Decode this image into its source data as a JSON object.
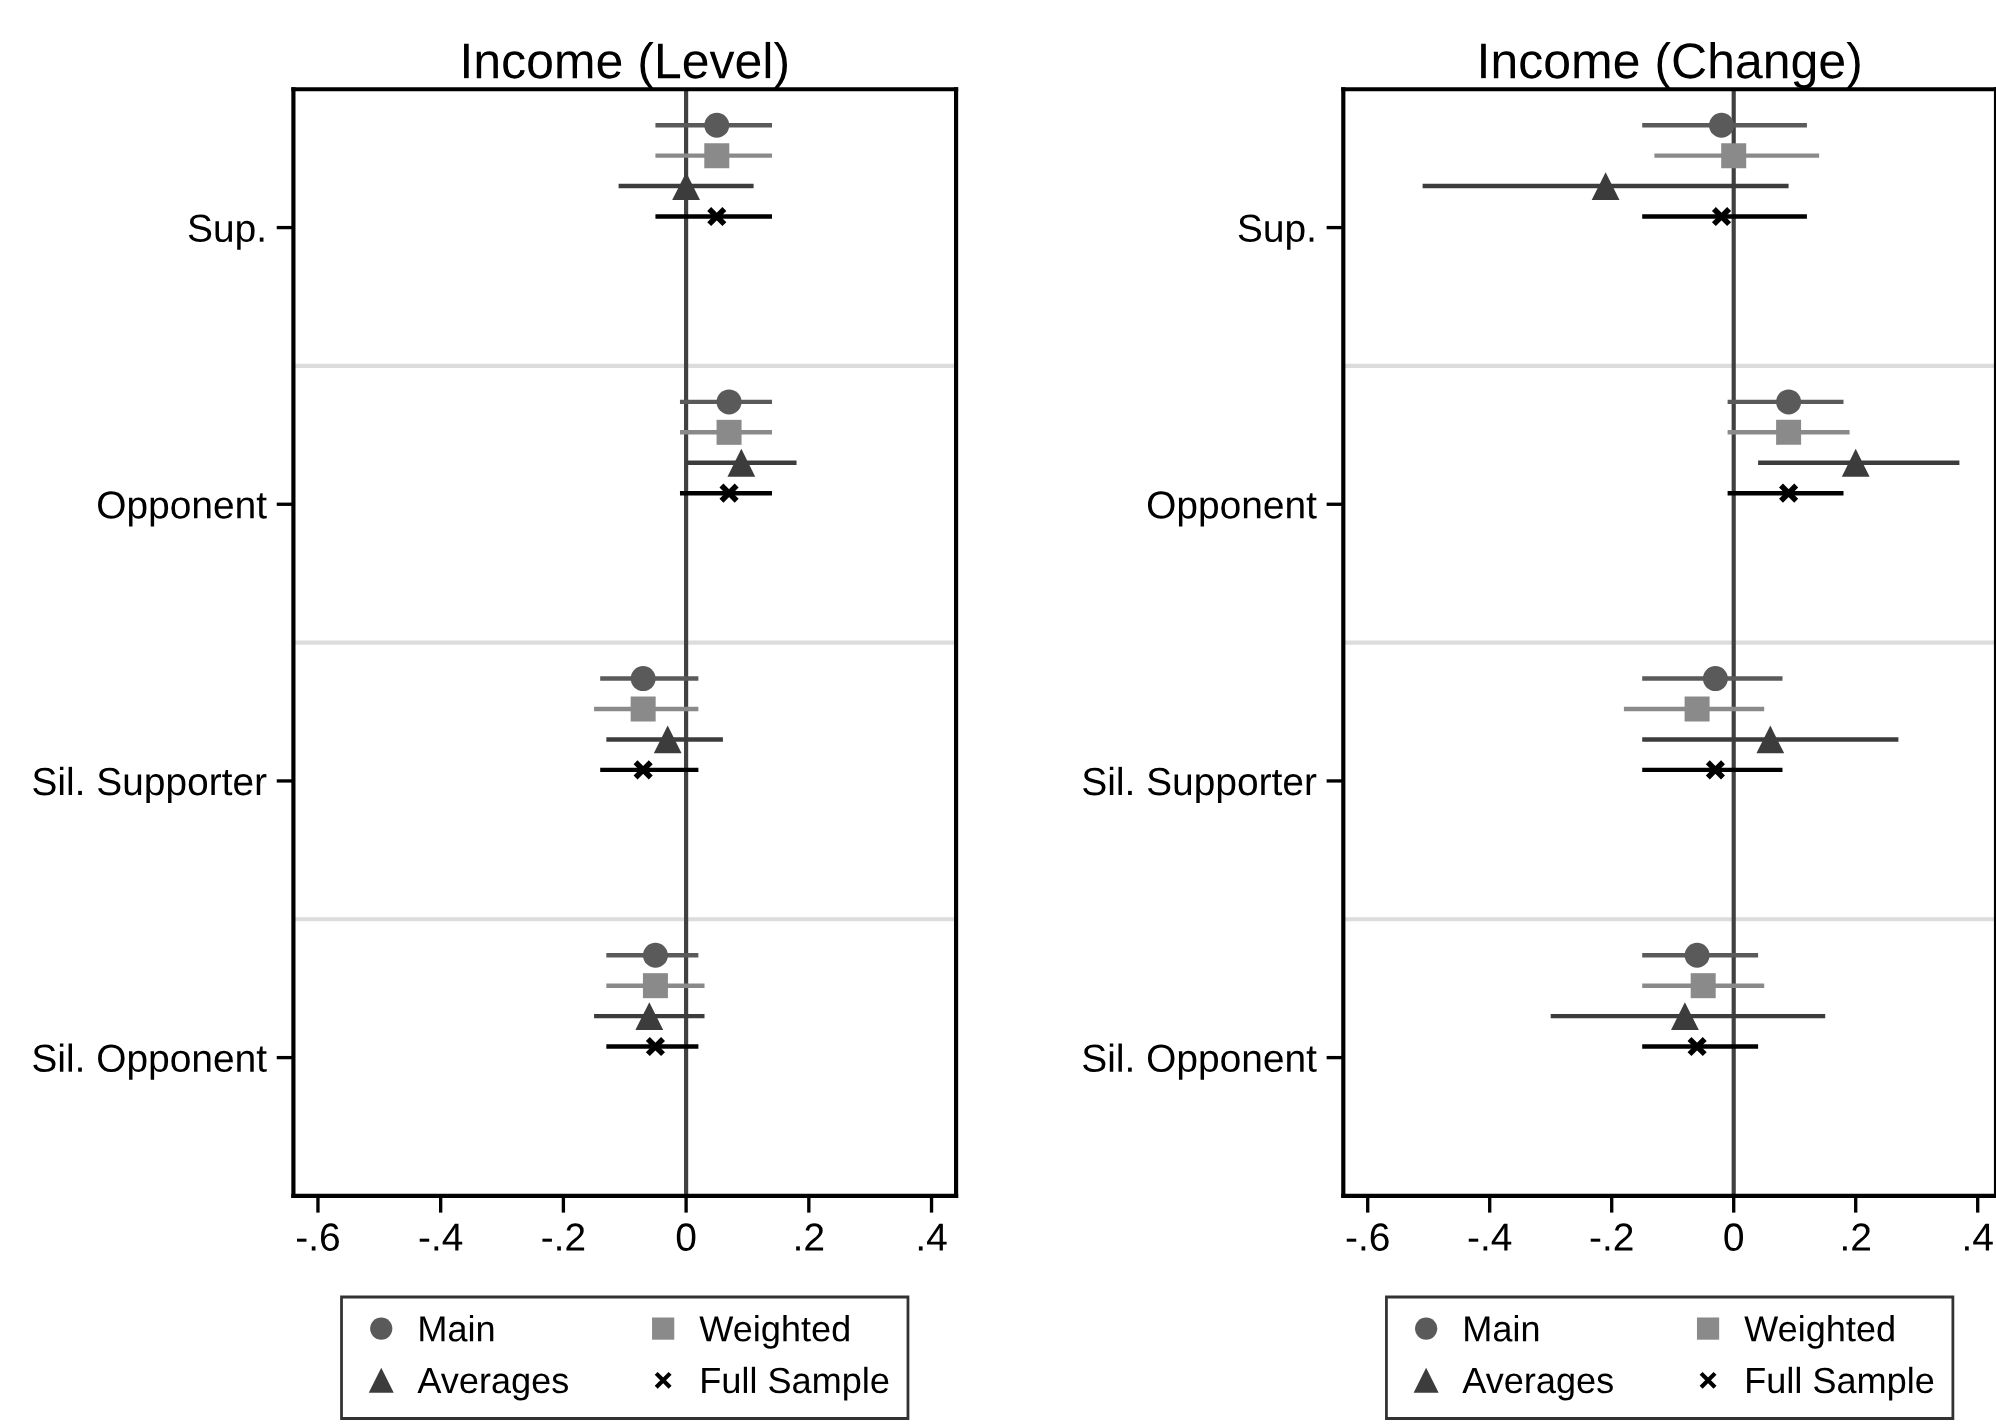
{
  "chart_data": [
    {
      "type": "scatter",
      "orientation": "horizontal",
      "title": "Income (Level)",
      "categories": [
        "Sup.",
        "Opponent",
        "Sil. Supporter",
        "Sil. Opponent"
      ],
      "xlim": [
        -0.64,
        0.44
      ],
      "xticks": [
        {
          "value": -0.6,
          "label": "-.6"
        },
        {
          "value": -0.4,
          "label": "-.4"
        },
        {
          "value": -0.2,
          "label": "-.2"
        },
        0,
        {
          "value": 0.2,
          "label": ".2"
        },
        {
          "value": 0.4,
          "label": ".4"
        }
      ],
      "grid": "y",
      "legend": "bottom",
      "ref_lines": [
        {
          "axis": "x",
          "value": 0,
          "color": "#404040"
        }
      ],
      "series": [
        {
          "name": "Main",
          "color": "#5a5a5a",
          "marker": "circle",
          "values": [
            0.05,
            0.07,
            -0.07,
            -0.05
          ],
          "errors": [
            [
              -0.05,
              0.14
            ],
            [
              -0.01,
              0.14
            ],
            [
              -0.14,
              0.02
            ],
            [
              -0.13,
              0.02
            ]
          ]
        },
        {
          "name": "Weighted",
          "color": "#8a8a8a",
          "marker": "square",
          "values": [
            0.05,
            0.07,
            -0.07,
            -0.05
          ],
          "errors": [
            [
              -0.05,
              0.14
            ],
            [
              -0.01,
              0.14
            ],
            [
              -0.15,
              0.02
            ],
            [
              -0.13,
              0.03
            ]
          ]
        },
        {
          "name": "Averages",
          "color": "#3c3c3c",
          "marker": "triangle",
          "values": [
            0.0,
            0.09,
            -0.03,
            -0.06
          ],
          "errors": [
            [
              -0.11,
              0.11
            ],
            [
              0.0,
              0.18
            ],
            [
              -0.13,
              0.06
            ],
            [
              -0.15,
              0.03
            ]
          ]
        },
        {
          "name": "Full Sample",
          "color": "#000000",
          "marker": "cross",
          "values": [
            0.05,
            0.07,
            -0.07,
            -0.05
          ],
          "errors": [
            [
              -0.05,
              0.14
            ],
            [
              -0.01,
              0.14
            ],
            [
              -0.14,
              0.02
            ],
            [
              -0.13,
              0.02
            ]
          ]
        }
      ]
    },
    {
      "type": "scatter",
      "orientation": "horizontal",
      "title": "Income (Change)",
      "categories": [
        "Sup.",
        "Opponent",
        "Sil. Supporter",
        "Sil. Opponent"
      ],
      "xlim": [
        -0.64,
        0.43
      ],
      "xticks": [
        {
          "value": -0.6,
          "label": "-.6"
        },
        {
          "value": -0.4,
          "label": "-.4"
        },
        {
          "value": -0.2,
          "label": "-.2"
        },
        0,
        {
          "value": 0.2,
          "label": ".2"
        },
        {
          "value": 0.4,
          "label": ".4"
        }
      ],
      "grid": "y",
      "legend": "bottom",
      "ref_lines": [
        {
          "axis": "x",
          "value": 0,
          "color": "#404040"
        }
      ],
      "series": [
        {
          "name": "Main",
          "color": "#5a5a5a",
          "marker": "circle",
          "values": [
            -0.02,
            0.09,
            -0.03,
            -0.06
          ],
          "errors": [
            [
              -0.15,
              0.12
            ],
            [
              -0.01,
              0.18
            ],
            [
              -0.15,
              0.08
            ],
            [
              -0.15,
              0.04
            ]
          ]
        },
        {
          "name": "Weighted",
          "color": "#8a8a8a",
          "marker": "square",
          "values": [
            0.0,
            0.09,
            -0.06,
            -0.05
          ],
          "errors": [
            [
              -0.13,
              0.14
            ],
            [
              -0.01,
              0.19
            ],
            [
              -0.18,
              0.05
            ],
            [
              -0.15,
              0.05
            ]
          ]
        },
        {
          "name": "Averages",
          "color": "#3c3c3c",
          "marker": "triangle",
          "values": [
            -0.21,
            0.2,
            0.06,
            -0.08
          ],
          "errors": [
            [
              -0.51,
              0.09
            ],
            [
              0.04,
              0.37
            ],
            [
              -0.15,
              0.27
            ],
            [
              -0.3,
              0.15
            ]
          ]
        },
        {
          "name": "Full Sample",
          "color": "#000000",
          "marker": "cross",
          "values": [
            -0.02,
            0.09,
            -0.03,
            -0.06
          ],
          "errors": [
            [
              -0.15,
              0.12
            ],
            [
              -0.01,
              0.18
            ],
            [
              -0.15,
              0.08
            ],
            [
              -0.15,
              0.04
            ]
          ]
        }
      ]
    }
  ]
}
